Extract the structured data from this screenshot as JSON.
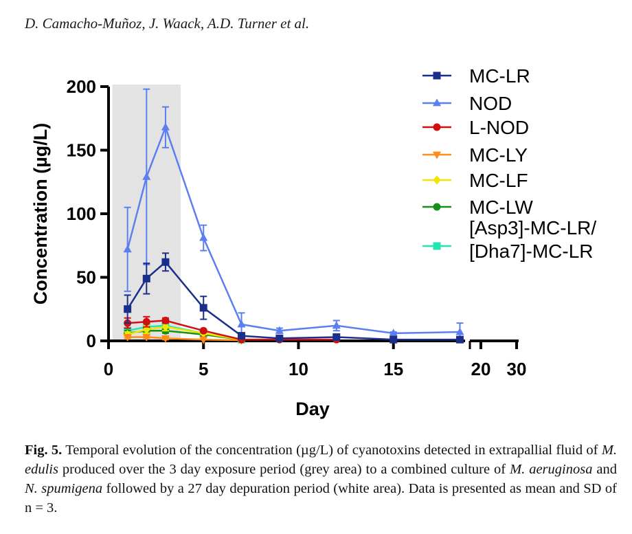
{
  "running_head": "D. Camacho-Muñoz, J. Waack, A.D. Turner et al.",
  "caption": {
    "label": "Fig. 5.",
    "parts": [
      {
        "t": " Temporal evolution of the concentration (µg/L) of cyanotoxins detected in extrapallial fluid of ",
        "i": false
      },
      {
        "t": "M. edulis",
        "i": true
      },
      {
        "t": " produced over the 3 day exposure period (grey area) to a combined culture of ",
        "i": false
      },
      {
        "t": "M. aeruginosa",
        "i": true
      },
      {
        "t": " and ",
        "i": false
      },
      {
        "t": "N. spumigena",
        "i": true
      },
      {
        "t": " followed by a 27 day depuration period (white area). Data is presented as mean and SD of n = 3.",
        "i": false
      }
    ]
  },
  "chart_data": {
    "type": "line",
    "xlabel": "Day",
    "ylabel": "Concentration (µg/L)",
    "ylim": [
      0,
      200
    ],
    "yticks": [
      0,
      50,
      100,
      150,
      200
    ],
    "xticks_main": [
      0,
      5,
      10,
      15
    ],
    "xticks_broken": [
      20,
      30
    ],
    "xlim_main": [
      0,
      18.7
    ],
    "axis_break": true,
    "exposure_period": {
      "x0": 0.2,
      "x1": 3.8,
      "color": "#e3e3e3"
    },
    "legend_position": "right",
    "series": [
      {
        "name": "MC-LR",
        "color": "#1a2e8a",
        "marker": "square",
        "x": [
          1,
          2,
          3,
          5,
          7,
          9,
          12,
          15,
          18.5
        ],
        "y": [
          25,
          49,
          62,
          26,
          4,
          2,
          3,
          1,
          1
        ],
        "err": [
          11,
          12,
          7,
          9,
          2,
          1,
          1,
          0.5,
          1
        ]
      },
      {
        "name": "NOD",
        "color": "#5b7ef0",
        "marker": "triangle",
        "x": [
          1,
          2,
          3,
          5,
          7,
          9,
          12,
          15,
          18.5
        ],
        "y": [
          72,
          129,
          168,
          81,
          13,
          8,
          12,
          6,
          7
        ],
        "err": [
          33,
          69,
          16,
          10,
          9,
          2,
          4,
          1,
          7
        ]
      },
      {
        "name": "L-NOD",
        "color": "#d01010",
        "marker": "circle",
        "x": [
          1,
          2,
          3,
          5,
          7,
          9,
          12
        ],
        "y": [
          14,
          15,
          16,
          8,
          1,
          1,
          1
        ],
        "err": [
          4,
          4,
          2,
          1,
          0.5,
          0.5,
          0.5
        ]
      },
      {
        "name": "MC-LY",
        "color": "#ff8c1a",
        "marker": "triangle-down",
        "x": [
          1,
          2,
          3,
          5,
          7
        ],
        "y": [
          3,
          3,
          2,
          1,
          0.5
        ],
        "err": [
          1,
          1,
          1,
          0.5,
          0.3
        ]
      },
      {
        "name": "MC-LF",
        "color": "#f2e600",
        "marker": "diamond",
        "x": [
          1,
          2,
          3,
          5,
          7
        ],
        "y": [
          5,
          9,
          11,
          6,
          1
        ],
        "err": [
          2,
          3,
          3,
          1,
          0.5
        ]
      },
      {
        "name": "MC-LW",
        "color": "#159015",
        "marker": "circle",
        "x": [
          1,
          2,
          3,
          5,
          7
        ],
        "y": [
          6,
          8,
          8,
          5,
          1
        ],
        "err": [
          2,
          2,
          2,
          1,
          0.5
        ]
      },
      {
        "name": "[Asp3]-MC-LR/\n[Dha7]-MC-LR",
        "color": "#22e6b0",
        "marker": "square",
        "x": [
          1,
          2,
          3,
          5,
          7
        ],
        "y": [
          8,
          11,
          12,
          6,
          1
        ],
        "err": [
          2,
          3,
          3,
          1,
          0.5
        ]
      }
    ]
  }
}
